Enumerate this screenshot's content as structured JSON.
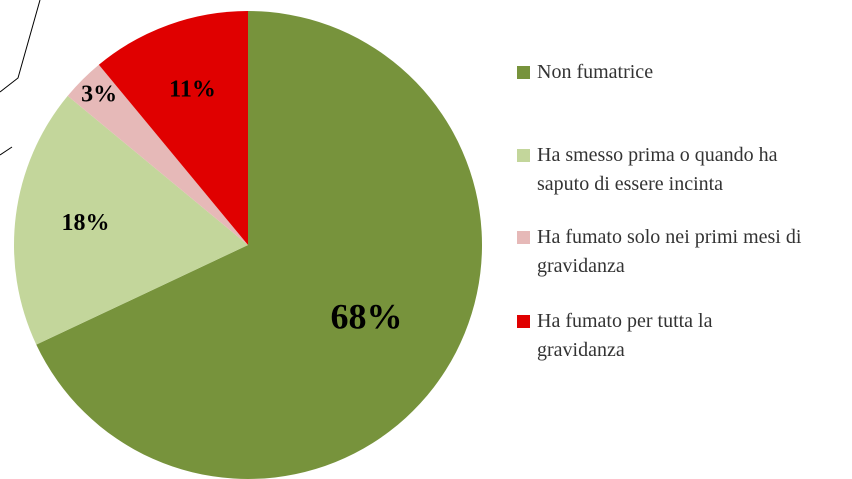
{
  "chart_data": {
    "type": "pie",
    "categories": [
      "Non fumatrice",
      "Ha smesso prima o quando ha saputo di essere incinta",
      "Ha fumato solo nei primi mesi di gravidanza",
      "Ha fumato per tutta la gravidanza"
    ],
    "values": [
      68,
      18,
      3,
      11
    ],
    "value_labels": [
      "68%",
      "18%",
      "3%",
      "11%"
    ],
    "colors": [
      "#77933c",
      "#c3d69b",
      "#e6b9b8",
      "#e00000"
    ],
    "legend": "right"
  }
}
